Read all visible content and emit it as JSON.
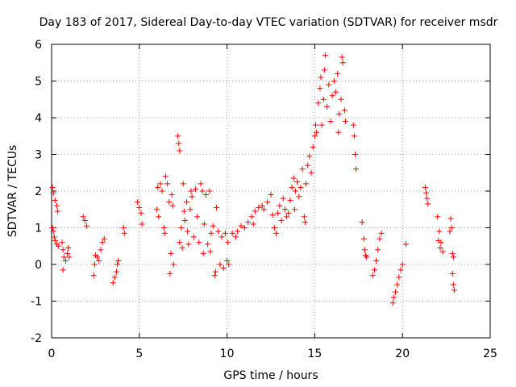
{
  "chart_data": {
    "type": "scatter",
    "title": "Day 183 of 2017, Sidereal Day-to-day VTEC variation (SDTVAR) for receiver msdr",
    "xlabel": "GPS time / hours",
    "ylabel": "SDTVAR / TECUs",
    "xlim": [
      0,
      25
    ],
    "ylim": [
      -2,
      6
    ],
    "xticks": [
      "0",
      "5",
      "10",
      "15",
      "20",
      "25"
    ],
    "yticks": [
      "-2",
      "-1",
      "0",
      "1",
      "2",
      "3",
      "4",
      "5",
      "6"
    ],
    "grid": true,
    "marker": "+",
    "color": "#ff0000",
    "series": [
      {
        "name": "SDTVAR",
        "points": [
          [
            0.05,
            2.1
          ],
          [
            0.1,
            1.95
          ],
          [
            0.2,
            1.75
          ],
          [
            0.3,
            1.6
          ],
          [
            0.35,
            1.45
          ],
          [
            0.05,
            1.0
          ],
          [
            0.1,
            0.9
          ],
          [
            0.15,
            0.75
          ],
          [
            0.2,
            0.65
          ],
          [
            0.3,
            0.55
          ],
          [
            0.4,
            0.5
          ],
          [
            0.6,
            0.6
          ],
          [
            0.65,
            0.4
          ],
          [
            0.7,
            0.2
          ],
          [
            0.65,
            -0.15
          ],
          [
            0.8,
            0.1
          ],
          [
            0.9,
            0.3
          ],
          [
            0.95,
            0.45
          ],
          [
            1.0,
            0.2
          ],
          [
            1.8,
            1.3
          ],
          [
            1.9,
            1.2
          ],
          [
            2.0,
            1.05
          ],
          [
            2.4,
            -0.3
          ],
          [
            2.45,
            0.0
          ],
          [
            2.5,
            0.25
          ],
          [
            2.6,
            0.2
          ],
          [
            2.7,
            0.1
          ],
          [
            2.8,
            0.4
          ],
          [
            2.9,
            0.6
          ],
          [
            3.0,
            0.7
          ],
          [
            3.5,
            -0.5
          ],
          [
            3.6,
            -0.35
          ],
          [
            3.7,
            -0.2
          ],
          [
            3.75,
            0.0
          ],
          [
            3.8,
            0.1
          ],
          [
            4.1,
            1.0
          ],
          [
            4.15,
            0.85
          ],
          [
            4.9,
            1.7
          ],
          [
            5.0,
            1.55
          ],
          [
            5.1,
            1.4
          ],
          [
            5.15,
            1.1
          ],
          [
            6.0,
            1.5
          ],
          [
            6.05,
            2.1
          ],
          [
            6.1,
            1.3
          ],
          [
            6.2,
            2.2
          ],
          [
            6.3,
            2.0
          ],
          [
            6.4,
            1.0
          ],
          [
            6.45,
            0.85
          ],
          [
            6.5,
            2.4
          ],
          [
            6.6,
            2.2
          ],
          [
            6.7,
            1.7
          ],
          [
            6.75,
            -0.25
          ],
          [
            6.8,
            0.3
          ],
          [
            6.85,
            1.9
          ],
          [
            6.9,
            1.6
          ],
          [
            6.95,
            0.0
          ],
          [
            7.2,
            3.5
          ],
          [
            7.25,
            3.3
          ],
          [
            7.3,
            3.1
          ],
          [
            7.3,
            0.6
          ],
          [
            7.4,
            1.0
          ],
          [
            7.45,
            0.45
          ],
          [
            7.5,
            2.2
          ],
          [
            7.55,
            1.45
          ],
          [
            7.6,
            1.2
          ],
          [
            7.7,
            1.7
          ],
          [
            7.75,
            0.9
          ],
          [
            7.8,
            0.55
          ],
          [
            7.9,
            1.5
          ],
          [
            7.95,
            2.0
          ],
          [
            8.0,
            1.85
          ],
          [
            8.1,
            0.75
          ],
          [
            8.2,
            2.05
          ],
          [
            8.3,
            1.3
          ],
          [
            8.4,
            0.6
          ],
          [
            8.5,
            2.2
          ],
          [
            8.6,
            2.0
          ],
          [
            8.65,
            0.3
          ],
          [
            8.7,
            1.1
          ],
          [
            8.8,
            1.9
          ],
          [
            8.9,
            0.55
          ],
          [
            9.0,
            2.0
          ],
          [
            9.05,
            0.35
          ],
          [
            9.1,
            0.85
          ],
          [
            9.2,
            1.05
          ],
          [
            9.3,
            -0.3
          ],
          [
            9.35,
            -0.2
          ],
          [
            9.4,
            1.55
          ],
          [
            9.5,
            0.9
          ],
          [
            9.6,
            0.0
          ],
          [
            9.7,
            0.75
          ],
          [
            9.8,
            -0.1
          ],
          [
            9.9,
            0.85
          ],
          [
            10.0,
            0.1
          ],
          [
            10.05,
            0.6
          ],
          [
            10.1,
            0.0
          ],
          [
            10.3,
            0.85
          ],
          [
            10.5,
            0.75
          ],
          [
            10.6,
            0.9
          ],
          [
            10.8,
            1.05
          ],
          [
            11.0,
            1.0
          ],
          [
            11.2,
            1.15
          ],
          [
            11.4,
            1.3
          ],
          [
            11.5,
            1.1
          ],
          [
            11.6,
            1.45
          ],
          [
            11.8,
            1.55
          ],
          [
            12.0,
            1.6
          ],
          [
            12.1,
            1.5
          ],
          [
            12.3,
            1.7
          ],
          [
            12.5,
            1.9
          ],
          [
            12.6,
            1.35
          ],
          [
            12.7,
            1.0
          ],
          [
            12.8,
            0.85
          ],
          [
            12.9,
            1.4
          ],
          [
            13.0,
            1.6
          ],
          [
            13.1,
            1.2
          ],
          [
            13.2,
            1.8
          ],
          [
            13.3,
            1.5
          ],
          [
            13.4,
            1.3
          ],
          [
            13.5,
            1.4
          ],
          [
            13.6,
            1.75
          ],
          [
            13.7,
            2.1
          ],
          [
            13.8,
            2.35
          ],
          [
            13.85,
            1.5
          ],
          [
            13.9,
            2.0
          ],
          [
            14.0,
            2.25
          ],
          [
            14.1,
            1.85
          ],
          [
            14.2,
            2.1
          ],
          [
            14.3,
            2.6
          ],
          [
            14.4,
            1.3
          ],
          [
            14.45,
            1.15
          ],
          [
            14.5,
            2.2
          ],
          [
            14.6,
            2.7
          ],
          [
            14.7,
            2.95
          ],
          [
            14.8,
            2.5
          ],
          [
            14.9,
            3.2
          ],
          [
            15.0,
            3.5
          ],
          [
            15.05,
            3.8
          ],
          [
            15.1,
            3.6
          ],
          [
            15.2,
            4.4
          ],
          [
            15.3,
            4.8
          ],
          [
            15.35,
            5.1
          ],
          [
            15.4,
            3.8
          ],
          [
            15.5,
            4.5
          ],
          [
            15.55,
            5.3
          ],
          [
            15.6,
            5.7
          ],
          [
            15.7,
            4.3
          ],
          [
            15.8,
            4.9
          ],
          [
            15.9,
            3.9
          ],
          [
            16.0,
            4.6
          ],
          [
            16.1,
            5.0
          ],
          [
            16.2,
            4.7
          ],
          [
            16.3,
            5.2
          ],
          [
            16.35,
            3.6
          ],
          [
            16.4,
            4.1
          ],
          [
            16.5,
            4.5
          ],
          [
            16.55,
            5.65
          ],
          [
            16.6,
            5.5
          ],
          [
            16.7,
            4.2
          ],
          [
            16.75,
            3.9
          ],
          [
            17.2,
            3.8
          ],
          [
            17.25,
            3.5
          ],
          [
            17.3,
            3.0
          ],
          [
            17.35,
            2.6
          ],
          [
            17.7,
            1.15
          ],
          [
            17.8,
            0.7
          ],
          [
            17.85,
            0.4
          ],
          [
            17.9,
            0.25
          ],
          [
            17.95,
            0.2
          ],
          [
            18.3,
            -0.3
          ],
          [
            18.4,
            -0.15
          ],
          [
            18.5,
            0.1
          ],
          [
            18.6,
            0.4
          ],
          [
            18.7,
            0.7
          ],
          [
            18.8,
            0.85
          ],
          [
            19.45,
            -1.05
          ],
          [
            19.5,
            -0.9
          ],
          [
            19.6,
            -0.75
          ],
          [
            19.7,
            -0.55
          ],
          [
            19.8,
            -0.35
          ],
          [
            19.9,
            -0.15
          ],
          [
            20.0,
            0.0
          ],
          [
            20.2,
            0.55
          ],
          [
            21.3,
            2.1
          ],
          [
            21.35,
            1.95
          ],
          [
            21.4,
            1.8
          ],
          [
            21.45,
            1.65
          ],
          [
            22.0,
            1.3
          ],
          [
            22.05,
            0.65
          ],
          [
            22.1,
            0.9
          ],
          [
            22.15,
            0.45
          ],
          [
            22.2,
            0.6
          ],
          [
            22.3,
            0.35
          ],
          [
            22.7,
            0.9
          ],
          [
            22.75,
            1.25
          ],
          [
            22.8,
            1.0
          ],
          [
            22.85,
            0.3
          ],
          [
            22.9,
            0.2
          ],
          [
            22.85,
            -0.25
          ],
          [
            22.9,
            -0.55
          ],
          [
            22.95,
            -0.7
          ]
        ]
      }
    ]
  }
}
